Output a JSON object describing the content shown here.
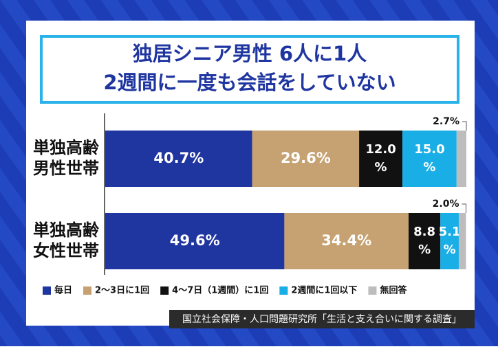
{
  "chart_data": {
    "type": "stacked-bar-horizontal",
    "title": [
      "独居シニア男性 6人に1人",
      "2週間に一度も会話をしていない"
    ],
    "categories": [
      "単独高齢\n男性世帯",
      "単独高齢\n女性世帯"
    ],
    "xlim": [
      0,
      100
    ],
    "series": [
      {
        "name": "毎日",
        "color": "#1f35a0",
        "values": [
          40.7,
          49.6
        ],
        "value_labels": [
          "40.7%",
          "49.6%"
        ]
      },
      {
        "name": "2〜3日に1回",
        "color": "#c6a272",
        "values": [
          29.6,
          34.4
        ],
        "value_labels": [
          "29.6%",
          "34.4%"
        ]
      },
      {
        "name": "4〜7日（1週間）に1回",
        "color": "#111111",
        "values": [
          12.0,
          8.8
        ],
        "value_labels": [
          "12.0\n%",
          "8.8\n%"
        ]
      },
      {
        "name": "2週間に1回以下",
        "color": "#1aaee6",
        "values": [
          15.0,
          5.1
        ],
        "value_labels": [
          "15.0\n%",
          "5.1\n%"
        ]
      },
      {
        "name": "無回答",
        "color": "#bdbdbd",
        "values": [
          2.7,
          2.0
        ],
        "value_labels": [
          "2.7%",
          "2.0%"
        ]
      }
    ],
    "source": "国立社会保障・人口問題研究所「生活と支え合いに関する調査」"
  }
}
